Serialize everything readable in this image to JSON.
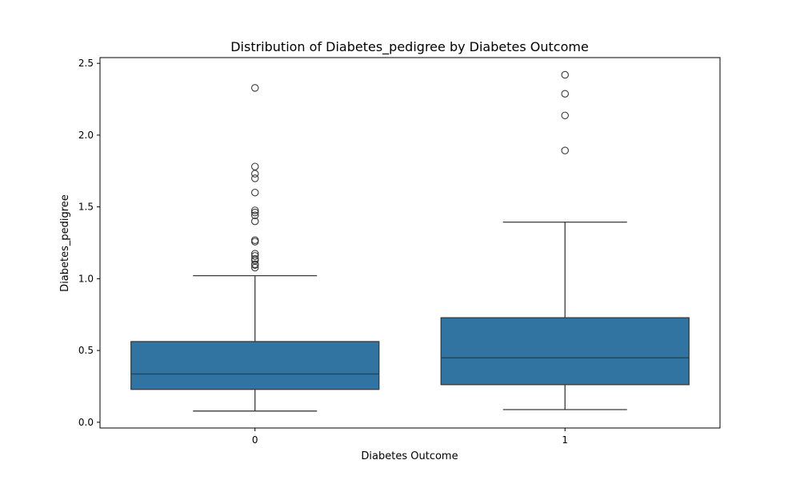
{
  "chart_data": {
    "type": "box",
    "title": "Distribution of Diabetes_pedigree by Diabetes Outcome",
    "xlabel": "Diabetes Outcome",
    "ylabel": "Diabetes_pedigree",
    "categories": [
      "0",
      "1"
    ],
    "ylim": [
      -0.04,
      2.54
    ],
    "yticks": [
      0.0,
      0.5,
      1.0,
      1.5,
      2.0,
      2.5
    ],
    "ytick_labels": [
      "0.0",
      "0.5",
      "1.0",
      "1.5",
      "2.0",
      "2.5"
    ],
    "box_color": "#3274a1",
    "line_color": "#3a3a3a",
    "grid": false,
    "boxes": [
      {
        "category": "0",
        "whisker_low": 0.078,
        "q1": 0.229,
        "median": 0.336,
        "q3": 0.562,
        "whisker_high": 1.021,
        "outliers": [
          2.329,
          1.781,
          1.731,
          1.699,
          1.6,
          1.476,
          1.461,
          1.441,
          1.4,
          1.268,
          1.258,
          1.174,
          1.159,
          1.138,
          1.127,
          1.101,
          1.095,
          1.077
        ]
      },
      {
        "category": "1",
        "whisker_low": 0.088,
        "q1": 0.262,
        "median": 0.449,
        "q3": 0.728,
        "whisker_high": 1.394,
        "outliers": [
          2.42,
          2.288,
          2.137,
          1.893
        ]
      }
    ]
  }
}
